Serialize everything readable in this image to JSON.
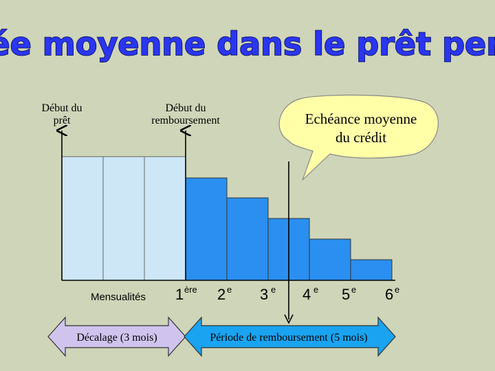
{
  "title": "La durée moyenne dans le prêt personnel",
  "labels": {
    "loan_start": [
      "Début du",
      "prêt"
    ],
    "repayment_start": [
      "Début du",
      "remboursement"
    ],
    "average_maturity": [
      "Echéance moyenne",
      "du crédit"
    ],
    "installments": "Mensualités"
  },
  "installment_ranks": [
    {
      "num": "1",
      "sup": "ère"
    },
    {
      "num": "2",
      "sup": "e"
    },
    {
      "num": "3",
      "sup": "e"
    },
    {
      "num": "4",
      "sup": "e"
    },
    {
      "num": "5",
      "sup": "e"
    },
    {
      "num": "6",
      "sup": "e"
    }
  ],
  "arrows": {
    "deferral": "Décalage (3 mois)",
    "repayment_period": "Période de remboursement (5 mois)"
  },
  "colors": {
    "background": "#cfd5b8",
    "deferral_fill": "#cde7f7",
    "repayment_fill": "#2a8ff0",
    "bubble_fill": "#ffffa8",
    "arrow_left_fill": "#d0c4ee",
    "arrow_right_fill": "#1aa3f0",
    "title": "#2a36f0"
  }
}
